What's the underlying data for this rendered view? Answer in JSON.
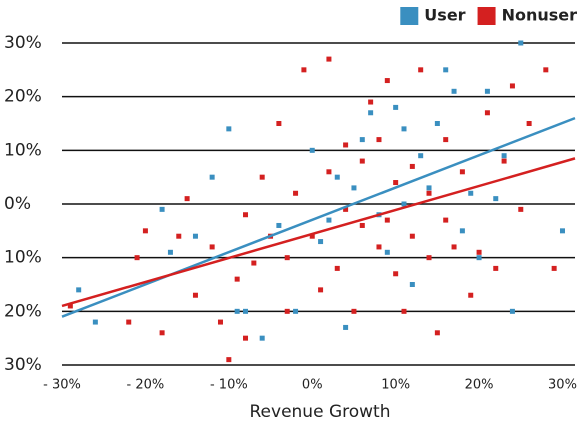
{
  "chart_data": {
    "type": "scatter",
    "xlabel": "Revenue Growth",
    "xlim": [
      -30,
      31.5
    ],
    "ylim": [
      -30,
      30
    ],
    "xticks": [
      {
        "value": -30,
        "label": "- 30%"
      },
      {
        "value": -20,
        "label": "- 20%"
      },
      {
        "value": -10,
        "label": "- 10%"
      },
      {
        "value": 0,
        "label": "0%"
      },
      {
        "value": 10,
        "label": "10%"
      },
      {
        "value": 20,
        "label": "20%"
      },
      {
        "value": 30,
        "label": "30%"
      }
    ],
    "yticks": [
      {
        "value": 30,
        "label": "30%"
      },
      {
        "value": 20,
        "label": "20%"
      },
      {
        "value": 10,
        "label": "10%"
      },
      {
        "value": 0,
        "label": "0%"
      },
      {
        "value": -10,
        "label": "10%"
      },
      {
        "value": -20,
        "label": "20%"
      },
      {
        "value": -30,
        "label": "30%"
      }
    ],
    "grid": true,
    "legend": "top-right",
    "series": [
      {
        "name": "User",
        "color": "#3a8fc0",
        "x": [
          -28,
          -26,
          -18,
          -17,
          -12,
          -10,
          -8,
          -6,
          -4,
          -2,
          0,
          2,
          3,
          4,
          5,
          6,
          8,
          9,
          10,
          11,
          12,
          13,
          14,
          15,
          16,
          17,
          18,
          19,
          20,
          21,
          22,
          23,
          24,
          25,
          30,
          -9,
          7,
          1,
          11,
          -14
        ],
        "values": [
          -16,
          -22,
          -1,
          -9,
          5,
          14,
          -20,
          -25,
          -4,
          -20,
          10,
          -3,
          5,
          -23,
          3,
          12,
          -2,
          -9,
          18,
          14,
          -15,
          9,
          3,
          15,
          25,
          21,
          -5,
          2,
          -10,
          21,
          1,
          9,
          -20,
          30,
          -5,
          -20,
          17,
          -7,
          0,
          -6
        ],
        "trend": {
          "x": [
            -30,
            31.5
          ],
          "values": [
            -21,
            16
          ]
        }
      },
      {
        "name": "Nonuser",
        "color": "#d42020",
        "x": [
          -29,
          -22,
          -21,
          -20,
          -18,
          -16,
          -14,
          -12,
          -11,
          -10,
          -9,
          -8,
          -7,
          -6,
          -5,
          -4,
          -3,
          -2,
          -1,
          0,
          1,
          2,
          2,
          3,
          4,
          5,
          6,
          6,
          7,
          8,
          8,
          9,
          9,
          10,
          10,
          11,
          12,
          12,
          13,
          14,
          14,
          15,
          16,
          16,
          17,
          18,
          19,
          20,
          21,
          22,
          23,
          24,
          25,
          26,
          28,
          29,
          -15,
          -8,
          4,
          -3
        ],
        "values": [
          -19,
          -22,
          -10,
          -5,
          -24,
          -6,
          -17,
          -8,
          -22,
          -29,
          -14,
          -2,
          -11,
          5,
          -6,
          15,
          -10,
          2,
          25,
          -6,
          -16,
          27,
          6,
          -12,
          -1,
          -20,
          8,
          -4,
          19,
          -8,
          12,
          -3,
          23,
          -13,
          4,
          -20,
          7,
          -6,
          25,
          -10,
          2,
          -24,
          -3,
          12,
          -8,
          6,
          -17,
          -9,
          17,
          -12,
          8,
          22,
          -1,
          15,
          25,
          -12,
          1,
          -25,
          11,
          -20
        ],
        "trend": {
          "x": [
            -30,
            31.5
          ],
          "values": [
            -19,
            8.5
          ]
        }
      }
    ]
  }
}
